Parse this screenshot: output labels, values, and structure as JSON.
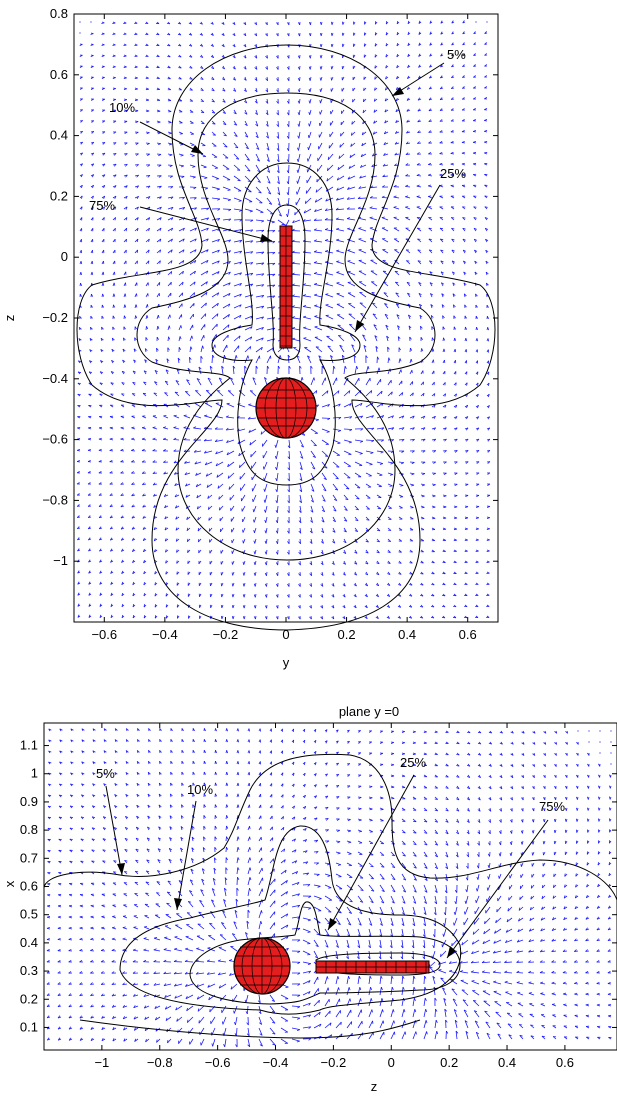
{
  "chart_data": [
    {
      "type": "contour",
      "title": "",
      "xlabel": "y",
      "ylabel": "z",
      "xlim": [
        -0.7,
        0.7
      ],
      "ylim": [
        -1.2,
        0.8
      ],
      "x_ticks": [
        "−0.6",
        "−0.4",
        "−0.2",
        "0",
        "0.2",
        "0.4",
        "0.6"
      ],
      "y_ticks": [
        "0.8",
        "0.6",
        "0.4",
        "0.2",
        "0",
        "−0.2",
        "−0.4",
        "−0.6",
        "−0.8",
        "−1"
      ],
      "contour_levels": [
        "5%",
        "10%",
        "25%",
        "75%"
      ],
      "annotations": [
        {
          "text": "5%",
          "x": 0.58,
          "y": 0.66
        },
        {
          "text": "10%",
          "x": -0.56,
          "y": 0.48
        },
        {
          "text": "75%",
          "x": -0.63,
          "y": 0.16
        },
        {
          "text": "25%",
          "x": 0.57,
          "y": 0.27
        }
      ],
      "objects": {
        "sphere": {
          "center": [
            0,
            -0.5
          ],
          "radius": 0.1,
          "color": "#e41e1e"
        },
        "rod": {
          "y": 0,
          "z_range": [
            -0.3,
            0.1
          ],
          "color": "#e41e1e"
        }
      },
      "vector_field_color": "#1a1aff"
    },
    {
      "type": "contour",
      "title": "plane y =0",
      "xlabel": "z",
      "ylabel": "x",
      "xlim": [
        -1.2,
        0.78
      ],
      "ylim": [
        0.02,
        1.18
      ],
      "x_ticks": [
        "−1",
        "−0.8",
        "−0.6",
        "−0.4",
        "−0.2",
        "0",
        "0.2",
        "0.4",
        "0.6"
      ],
      "y_ticks": [
        "1.1",
        "1",
        "0.9",
        "0.8",
        "0.7",
        "0.6",
        "0.5",
        "0.4",
        "0.3",
        "0.2",
        "0.1"
      ],
      "contour_levels": [
        "5%",
        "10%",
        "25%",
        "75%"
      ],
      "annotations": [
        {
          "text": "5%",
          "x": -1.08,
          "y": 0.98
        },
        {
          "text": "10%",
          "x": -0.77,
          "y": 0.9
        },
        {
          "text": "25%",
          "x": -0.07,
          "y": 1.04
        },
        {
          "text": "75%",
          "x": 0.29,
          "y": 0.83
        }
      ],
      "objects": {
        "sphere": {
          "center": [
            -0.5,
            0.2
          ],
          "radius": 0.1,
          "color": "#e41e1e"
        },
        "rod": {
          "x": 0.2,
          "z_range": [
            -0.3,
            0.1
          ],
          "color": "#e41e1e"
        }
      },
      "vector_field_color": "#1a1aff"
    }
  ]
}
